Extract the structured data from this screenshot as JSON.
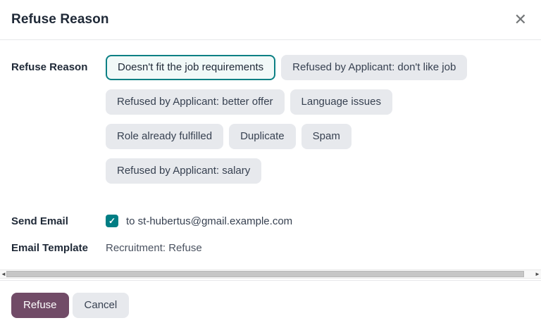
{
  "dialog": {
    "title": "Refuse Reason"
  },
  "icons": {
    "close": "✕",
    "checkmark": "✓",
    "scroll_left": "◄",
    "scroll_right": "►"
  },
  "form": {
    "refuse_reason": {
      "label": "Refuse Reason",
      "selected_option": "Doesn't fit the job requirements",
      "option_rows": [
        [
          "Doesn't fit the job requirements",
          "Refused by Applicant: don't like job"
        ],
        [
          "Refused by Applicant: better offer",
          "Language issues"
        ],
        [
          "Role already fulfilled",
          "Duplicate",
          "Spam"
        ],
        [
          "Refused by Applicant: salary"
        ]
      ]
    },
    "send_email": {
      "label": "Send Email",
      "checked": true,
      "recipient_text": "to st-hubertus@gmail.example.com"
    },
    "email_template": {
      "label": "Email Template",
      "value": "Recruitment: Refuse"
    }
  },
  "footer": {
    "refuse_label": "Refuse",
    "cancel_label": "Cancel"
  },
  "colors": {
    "accent_teal": "#017e84",
    "selected_pill_border": "#0c8084",
    "selected_pill_bg": "#f1f9f8",
    "pill_bg": "#e7e9ed",
    "primary_button_bg": "#714b67",
    "text_dark": "#1f2937"
  }
}
